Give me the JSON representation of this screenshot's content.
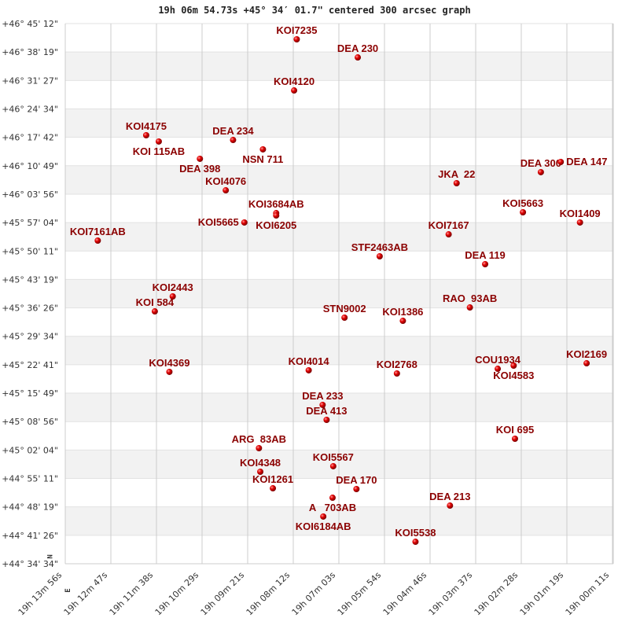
{
  "chart_data": {
    "type": "scatter",
    "title": "19h 06m 54.73s +45° 34′ 01.7\" centered 300 arcsec graph",
    "xlabel": "",
    "ylabel": "",
    "x_direction": "RA decreasing to the right",
    "xlim": [
      "19h 13m 56s",
      "19h 00m 11s"
    ],
    "ylim": [
      "+44° 34' 34\"",
      "+46° 45' 12\""
    ],
    "grid": true,
    "compass": {
      "north": "N",
      "east": "E"
    },
    "colors": {
      "marker": "#dd0000",
      "label": "#8b0000",
      "band": "#f2f2f2",
      "grid": "#cccccc"
    },
    "x_ticks": [
      "19h 13m 56s",
      "19h 12m 47s",
      "19h 11m 38s",
      "19h 10m 29s",
      "19h 09m 21s",
      "19h 08m 12s",
      "19h 07m 03s",
      "19h 05m 54s",
      "19h 04m 46s",
      "19h 03m 37s",
      "19h 02m 28s",
      "19h 01m 19s",
      "19h 00m 11s"
    ],
    "y_ticks": [
      "+46° 45' 12\"",
      "+46° 38' 19\"",
      "+46° 31' 27\"",
      "+46° 24' 34\"",
      "+46° 17' 42\"",
      "+46° 10' 49\"",
      "+46° 03' 56\"",
      "+45° 57' 04\"",
      "+45° 50' 11\"",
      "+45° 43' 19\"",
      "+45° 36' 26\"",
      "+45° 29' 34\"",
      "+45° 22' 41\"",
      "+45° 15' 49\"",
      "+45° 08' 56\"",
      "+45° 02' 04\"",
      "+44° 55' 11\"",
      "+44° 48' 19\"",
      "+44° 41' 26\"",
      "+44° 34' 34\""
    ],
    "points": [
      {
        "label": "KOI7235",
        "ra": "19h 08m 07s",
        "dec": "+46 41 24"
      },
      {
        "label": "DEA 230",
        "ra": "19h 06m 35s",
        "dec": "+46 37 01"
      },
      {
        "label": "KOI4120",
        "ra": "19h 08m 11s",
        "dec": "+46 29 02"
      },
      {
        "label": "KOI4175",
        "ra": "19h 11m 54s",
        "dec": "+46 18 12"
      },
      {
        "label": "KOI 115AB",
        "ra": "19h 11m 35s",
        "dec": "+46 16 41"
      },
      {
        "label": "DEA 234",
        "ra": "19h 09m 43s",
        "dec": "+46 17 03"
      },
      {
        "label": "NSN 711",
        "ra": "19h 08m 58s",
        "dec": "+46 14 47"
      },
      {
        "label": "DEA 398",
        "ra": "19h 10m 33s",
        "dec": "+46 12 30"
      },
      {
        "label": "KOI4076",
        "ra": "19h 09m 54s",
        "dec": "+46 04 53"
      },
      {
        "label": "KOI3684AB",
        "ra": "19h 08m 38s",
        "dec": "+45 59 22"
      },
      {
        "label": "KOI6205",
        "ra": "19h 08m 38s",
        "dec": "+45 58 48"
      },
      {
        "label": "KOI5665",
        "ra": "19h 09m 26s",
        "dec": "+45 57 06"
      },
      {
        "label": "KOI7161AB",
        "ra": "19h 13m 07s",
        "dec": "+45 52 43"
      },
      {
        "label": "JKA  22",
        "ra": "19h 04m 06s",
        "dec": "+46 06 36"
      },
      {
        "label": "DEA 300",
        "ra": "19h 01m 59s",
        "dec": "+46 09 16"
      },
      {
        "label": "DEA 147",
        "ra": "19h 01m 29s",
        "dec": "+46 11 44"
      },
      {
        "label": "KOI5663",
        "ra": "19h 02m 26s",
        "dec": "+45 59 34"
      },
      {
        "label": "KOI1409",
        "ra": "19h 01m 00s",
        "dec": "+45 57 06"
      },
      {
        "label": "KOI7167",
        "ra": "19h 04m 18s",
        "dec": "+45 54 14"
      },
      {
        "label": "STF2463AB",
        "ra": "19h 06m 02s",
        "dec": "+45 48 55"
      },
      {
        "label": "DEA 119",
        "ra": "19h 03m 23s",
        "dec": "+45 47 01"
      },
      {
        "label": "KOI2443",
        "ra": "19h 11m 14s",
        "dec": "+45 39 13"
      },
      {
        "label": "KOI 584",
        "ra": "19h 11m 41s",
        "dec": "+45 35 36"
      },
      {
        "label": "RAO  93AB",
        "ra": "19h 03m 46s",
        "dec": "+45 36 33"
      },
      {
        "label": "STN9002",
        "ra": "19h 06m 55s",
        "dec": "+45 34 05"
      },
      {
        "label": "KOI1386",
        "ra": "19h 05m 27s",
        "dec": "+45 33 19"
      },
      {
        "label": "KOI4369",
        "ra": "19h 11m 19s",
        "dec": "+45 20 58"
      },
      {
        "label": "KOI4014",
        "ra": "19h 07m 49s",
        "dec": "+45 21 21"
      },
      {
        "label": "KOI2768",
        "ra": "19h 05m 36s",
        "dec": "+45 20 35"
      },
      {
        "label": "COU1934",
        "ra": "19h 03m 04s",
        "dec": "+45 21 43"
      },
      {
        "label": "KOI4583",
        "ra": "19h 02m 40s",
        "dec": "+45 22 29"
      },
      {
        "label": "KOI2169",
        "ra": "19h 00m 50s",
        "dec": "+45 23 03"
      },
      {
        "label": "DEA 233",
        "ra": "19h 07m 28s",
        "dec": "+45 12 59"
      },
      {
        "label": "DEA 413",
        "ra": "19h 07m 22s",
        "dec": "+45 09 22"
      },
      {
        "label": "KOI 695",
        "ra": "19h 02m 38s",
        "dec": "+45 04 48"
      },
      {
        "label": "ARG  83AB",
        "ra": "19h 09m 04s",
        "dec": "+45 02 31"
      },
      {
        "label": "KOI4348",
        "ra": "19h 09m 02s",
        "dec": "+44 56 49"
      },
      {
        "label": "KOI5567",
        "ra": "19h 07m 12s",
        "dec": "+44 58 09"
      },
      {
        "label": "KOI1261",
        "ra": "19h 08m 43s",
        "dec": "+44 52 49"
      },
      {
        "label": "DEA 170",
        "ra": "19h 06m 37s",
        "dec": "+44 52 38"
      },
      {
        "label": "A   703AB",
        "ra": "19h 07m 13s",
        "dec": "+44 50 32"
      },
      {
        "label": "KOI6184AB",
        "ra": "19h 07m 27s",
        "dec": "+44 45 59"
      },
      {
        "label": "DEA 213",
        "ra": "19h 04m 16s",
        "dec": "+44 48 38"
      },
      {
        "label": "KOI5538",
        "ra": "19h 05m 08s",
        "dec": "+44 39 53"
      }
    ]
  }
}
